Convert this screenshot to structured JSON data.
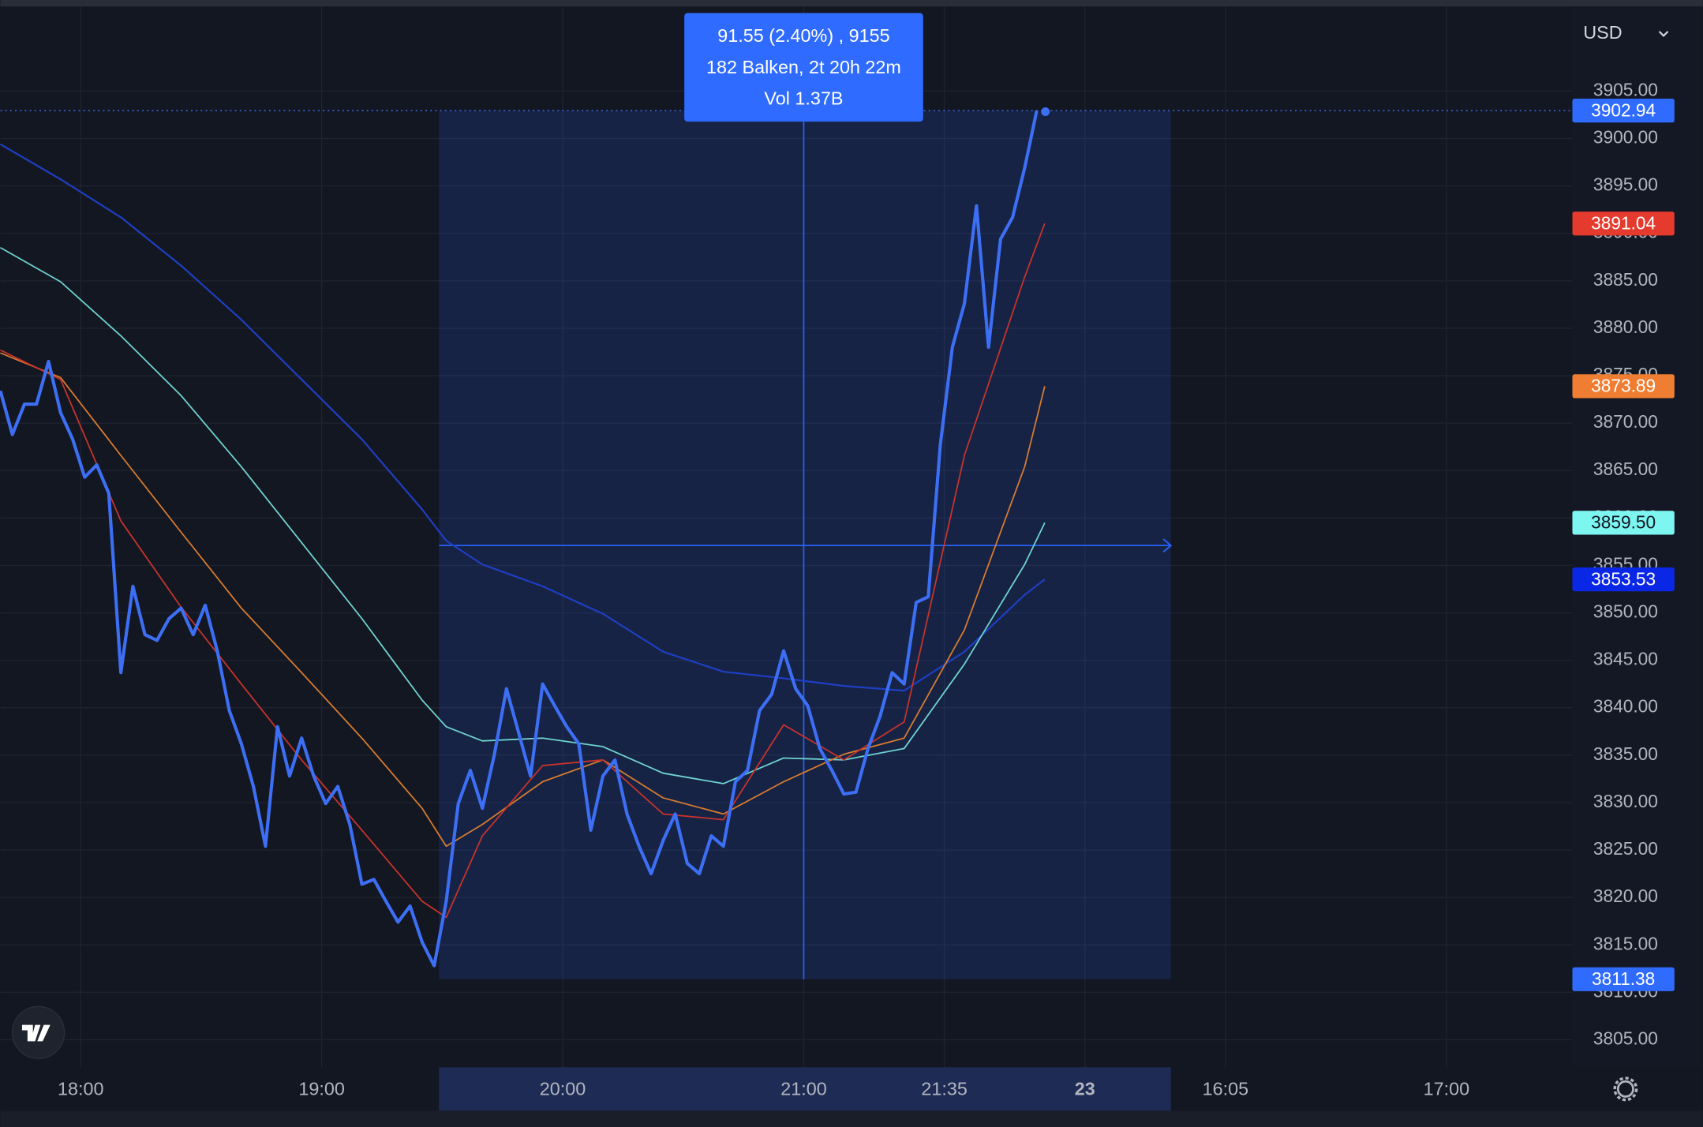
{
  "chart_data": {
    "type": "line",
    "currency": "USD",
    "xlim": [
      1060,
      1451.35
    ],
    "ylim": [
      3802.1,
      3914.6
    ],
    "xticks": [
      {
        "value": 1080,
        "label": "18:00"
      },
      {
        "value": 1140,
        "label": "19:00"
      },
      {
        "value": 1200,
        "label": "20:00"
      },
      {
        "value": 1260,
        "label": "21:00"
      },
      {
        "value": 1295,
        "label": "21:35"
      },
      {
        "value": 1330,
        "label": "23"
      },
      {
        "value": 1365,
        "label": "16:05"
      },
      {
        "value": 1420,
        "label": "17:00"
      }
    ],
    "yticks": [
      {
        "value": 3805,
        "label": "3805.00"
      },
      {
        "value": 3810,
        "label": "3810.00"
      },
      {
        "value": 3815,
        "label": "3815.00"
      },
      {
        "value": 3820,
        "label": "3820.00"
      },
      {
        "value": 3825,
        "label": "3825.00"
      },
      {
        "value": 3830,
        "label": "3830.00"
      },
      {
        "value": 3835,
        "label": "3835.00"
      },
      {
        "value": 3840,
        "label": "3840.00"
      },
      {
        "value": 3845,
        "label": "3845.00"
      },
      {
        "value": 3850,
        "label": "3850.00"
      },
      {
        "value": 3855,
        "label": "3855.00"
      },
      {
        "value": 3860,
        "label": "3860.00"
      },
      {
        "value": 3865,
        "label": "3865.00"
      },
      {
        "value": 3870,
        "label": "3870.00"
      },
      {
        "value": 3875,
        "label": "3875.00"
      },
      {
        "value": 3880,
        "label": "3880.00"
      },
      {
        "value": 3885,
        "label": "3885.00"
      },
      {
        "value": 3890,
        "label": "3890.00"
      },
      {
        "value": 3895,
        "label": "3895.00"
      },
      {
        "value": 3900,
        "label": "3900.00"
      },
      {
        "value": 3905,
        "label": "3905.00"
      }
    ],
    "grid": true,
    "series": [
      {
        "color": "#3d6ff5",
        "width": 3,
        "x": [
          1060,
          1063,
          1066,
          1069,
          1072,
          1075,
          1078,
          1081,
          1084,
          1087,
          1090,
          1093,
          1096,
          1099,
          1102,
          1105,
          1108,
          1111,
          1114,
          1117,
          1120,
          1123,
          1126,
          1129,
          1132,
          1135,
          1138,
          1141,
          1144,
          1147,
          1150,
          1153,
          1156,
          1159,
          1162,
          1165,
          1168,
          1171,
          1174,
          1177,
          1180,
          1183,
          1186,
          1189,
          1192,
          1195,
          1198,
          1201,
          1204,
          1207,
          1210,
          1213,
          1216,
          1219,
          1222,
          1225,
          1228,
          1231,
          1234,
          1237,
          1240,
          1243,
          1246,
          1249,
          1252,
          1255,
          1258,
          1261,
          1264,
          1267,
          1270,
          1273,
          1276,
          1279,
          1282,
          1285,
          1288,
          1291,
          1294,
          1297,
          1300,
          1303,
          1306,
          1309,
          1312,
          1315,
          1318
        ],
        "values": [
          3873.4,
          3868.8,
          3872.0,
          3872.0,
          3876.5,
          3871.1,
          3868.3,
          3864.3,
          3865.6,
          3862.6,
          3843.7,
          3852.8,
          3847.7,
          3847.1,
          3849.4,
          3850.5,
          3847.7,
          3850.8,
          3846.0,
          3839.7,
          3836.2,
          3831.7,
          3825.4,
          3838.0,
          3832.8,
          3836.8,
          3832.8,
          3829.9,
          3831.7,
          3827.7,
          3821.4,
          3821.9,
          3819.6,
          3817.4,
          3819.1,
          3815.3,
          3812.8,
          3819.6,
          3829.9,
          3833.4,
          3829.4,
          3835.1,
          3842.0,
          3837.4,
          3832.8,
          3842.5,
          3840.2,
          3838.0,
          3836.2,
          3827.1,
          3832.8,
          3834.5,
          3828.8,
          3825.4,
          3822.5,
          3826.0,
          3828.8,
          3823.6,
          3822.5,
          3826.5,
          3825.4,
          3832.2,
          3833.4,
          3839.7,
          3841.4,
          3846.0,
          3842.0,
          3840.2,
          3835.7,
          3833.4,
          3830.9,
          3831.1,
          3835.7,
          3839.1,
          3843.7,
          3842.5,
          3851.1,
          3851.7,
          3867.7,
          3878.0,
          3882.6,
          3892.9,
          3878.0,
          3889.4,
          3891.7,
          3896.9,
          3902.94
        ]
      },
      {
        "color": "#c7332c",
        "width": 1.3,
        "x": [
          1060,
          1075,
          1090,
          1105,
          1120,
          1135,
          1150,
          1165,
          1171,
          1180,
          1195,
          1210,
          1225,
          1240,
          1255,
          1270,
          1285,
          1300,
          1315,
          1320
        ],
        "values": [
          3877.7,
          3874.6,
          3859.7,
          3850.6,
          3842.5,
          3834.5,
          3827.1,
          3819.6,
          3817.9,
          3826.5,
          3833.9,
          3834.5,
          3828.8,
          3828.2,
          3838.2,
          3834.5,
          3838.5,
          3866.6,
          3885.4,
          3891.04
        ]
      },
      {
        "color": "#d77b2f",
        "width": 1.3,
        "x": [
          1060,
          1075,
          1090,
          1105,
          1120,
          1135,
          1150,
          1165,
          1171,
          1180,
          1195,
          1210,
          1225,
          1240,
          1255,
          1270,
          1285,
          1300,
          1315,
          1320
        ],
        "values": [
          3877.4,
          3874.8,
          3866.6,
          3858.5,
          3850.5,
          3843.7,
          3836.8,
          3829.4,
          3825.4,
          3827.7,
          3832.2,
          3834.5,
          3830.5,
          3828.8,
          3832.2,
          3835.1,
          3836.8,
          3848.2,
          3865.4,
          3873.89
        ]
      },
      {
        "color": "#6fd3cf",
        "width": 1.3,
        "x": [
          1060,
          1075,
          1090,
          1105,
          1120,
          1135,
          1150,
          1165,
          1171,
          1180,
          1195,
          1210,
          1225,
          1240,
          1255,
          1270,
          1285,
          1300,
          1315,
          1320
        ],
        "values": [
          3888.5,
          3884.9,
          3879.2,
          3872.9,
          3865.4,
          3857.4,
          3849.4,
          3840.8,
          3838.0,
          3836.5,
          3836.8,
          3835.9,
          3833.1,
          3832.0,
          3834.7,
          3834.5,
          3835.7,
          3844.6,
          3855.1,
          3859.5
        ]
      },
      {
        "color": "#1e3fc2",
        "width": 1.6,
        "x": [
          1060,
          1075,
          1090,
          1105,
          1120,
          1135,
          1150,
          1165,
          1171,
          1180,
          1195,
          1210,
          1225,
          1240,
          1255,
          1270,
          1285,
          1300,
          1315,
          1320
        ],
        "values": [
          3899.4,
          3895.7,
          3891.7,
          3886.6,
          3880.9,
          3874.6,
          3868.3,
          3860.9,
          3857.6,
          3855.1,
          3852.8,
          3849.9,
          3845.9,
          3843.8,
          3843.1,
          3842.3,
          3841.8,
          3845.9,
          3851.9,
          3853.53
        ]
      }
    ],
    "axis_badges": [
      {
        "value": 3902.94,
        "label": "3902.94",
        "color": "#2f6bff",
        "label_color": "#ffffff"
      },
      {
        "value": 3891.04,
        "label": "3891.04",
        "color": "#e53a2e",
        "label_color": "#ffffff"
      },
      {
        "value": 3873.89,
        "label": "3873.89",
        "color": "#f07e32",
        "label_color": "#ffffff"
      },
      {
        "value": 3859.5,
        "label": "3859.50",
        "color": "#7df6f2",
        "label_color": "#131722"
      },
      {
        "value": 3853.53,
        "label": "3853.53",
        "color": "#0b27e6",
        "label_color": "#ffffff"
      },
      {
        "value": 3811.38,
        "label": "3811.38",
        "color": "#2f6bff",
        "label_color": "#ffffff"
      }
    ],
    "measure": {
      "x": [
        1169.2,
        1351.4
      ],
      "y": [
        3811.38,
        3902.94
      ],
      "crosshair": {
        "x": 1260,
        "y": 3857.1
      },
      "lines": [
        "91.55 (2.40%) , 9155",
        "182 Balken, 2t 20h 22m",
        "Vol 1.37B"
      ]
    }
  }
}
